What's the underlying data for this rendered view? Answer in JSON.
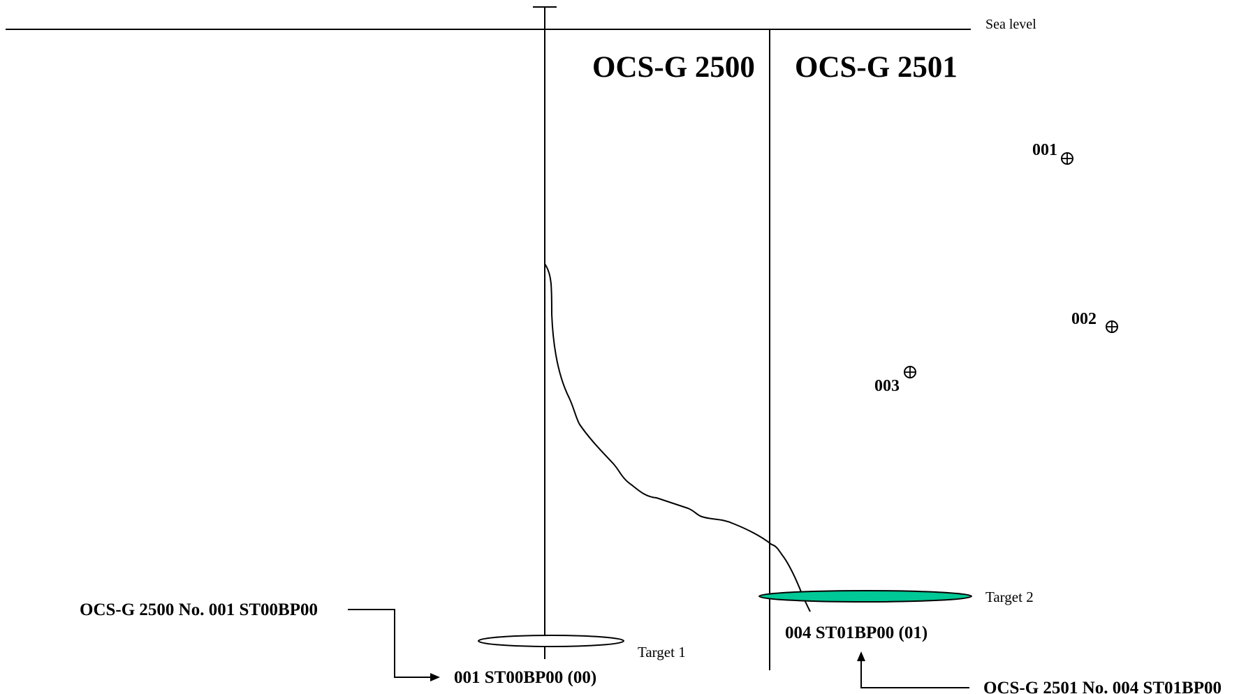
{
  "sea_level_label": "Sea level",
  "lease_blocks": {
    "left": "OCS-G 2500",
    "right": "OCS-G 2501"
  },
  "existing_wells": [
    {
      "label": "001"
    },
    {
      "label": "002"
    },
    {
      "label": "003"
    }
  ],
  "targets": {
    "target1": {
      "label": "Target 1",
      "fill": "#ffffff"
    },
    "target2": {
      "label": "Target 2",
      "fill": "#00c896"
    }
  },
  "well_labels": {
    "well_001": "001 ST00BP00 (00)",
    "well_004": "004 ST01BP00 (01)"
  },
  "callouts": {
    "left": "OCS-G 2500 No. 001 ST00BP00",
    "right": "OCS-G 2501 No. 004 ST01BP00"
  },
  "colors": {
    "line": "#000000",
    "target2_fill": "#00c896"
  }
}
